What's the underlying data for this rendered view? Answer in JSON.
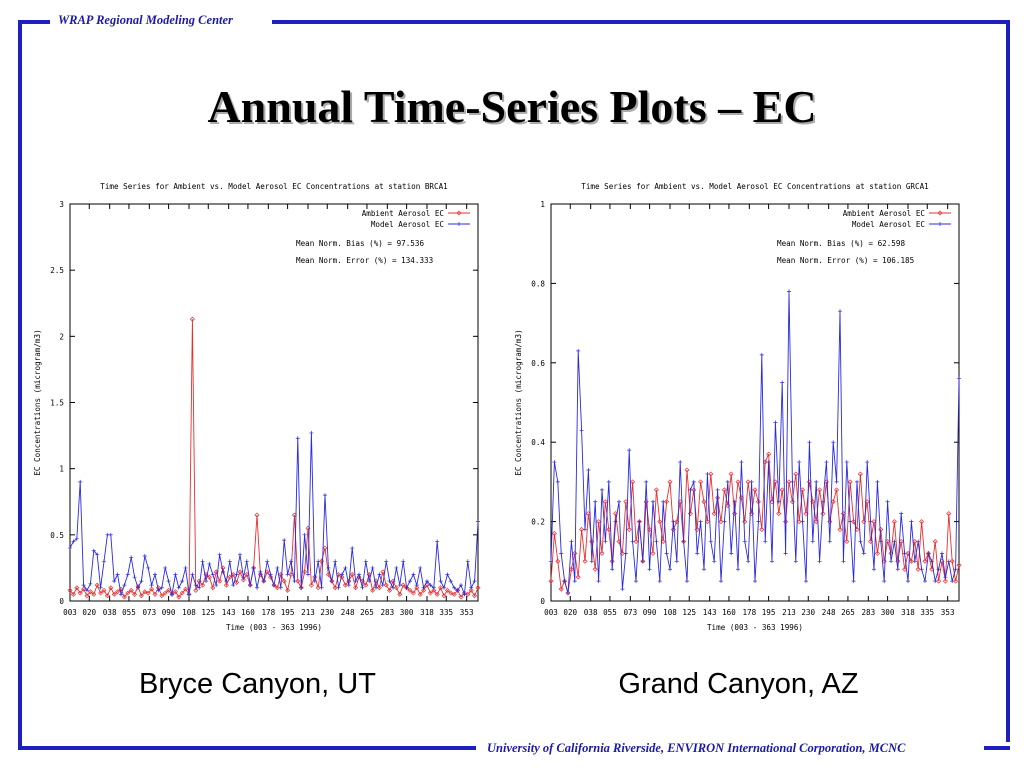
{
  "header": {
    "org": "WRAP Regional Modeling Center"
  },
  "footer": {
    "credits": "University of California Riverside, ENVIRON International Corporation, MCNC"
  },
  "slide": {
    "title": "Annual Time-Series Plots – EC"
  },
  "captions": {
    "left": "Bryce Canyon, UT",
    "right": "Grand Canyon, AZ"
  },
  "colors": {
    "frame": "#1f1fbf",
    "ambient": "#e53030",
    "model": "#2a2ae0"
  },
  "chart_data": [
    {
      "type": "line",
      "title": "Time Series for Ambient vs. Model Aerosol EC Concentrations at station BRCA1",
      "xlabel": "Time    (003 - 363 1996)",
      "ylabel": "EC Concentrations (microgram/m3)",
      "xlim": [
        3,
        363
      ],
      "ylim": [
        0,
        3
      ],
      "x_ticks": [
        "003",
        "020",
        "038",
        "055",
        "073",
        "090",
        "108",
        "125",
        "143",
        "160",
        "178",
        "195",
        "213",
        "230",
        "248",
        "265",
        "283",
        "300",
        "318",
        "335",
        "353"
      ],
      "y_ticks": [
        "0",
        "0.5",
        "1",
        "1.5",
        "2",
        "2.5",
        "3"
      ],
      "legend": [
        "Ambient Aerosol EC",
        "Model Aerosol EC"
      ],
      "stats": [
        "Mean Norm. Bias (%) = 97.536",
        "Mean Norm. Error (%) = 134.333"
      ],
      "series": [
        {
          "name": "Ambient Aerosol EC",
          "color": "#e53030",
          "marker": "diamond",
          "x": [
            3,
            6,
            9,
            12,
            15,
            18,
            21,
            24,
            27,
            30,
            33,
            36,
            39,
            42,
            45,
            48,
            51,
            54,
            57,
            60,
            63,
            66,
            69,
            72,
            75,
            78,
            81,
            84,
            87,
            90,
            93,
            96,
            99,
            102,
            105,
            108,
            111,
            114,
            117,
            120,
            123,
            126,
            129,
            132,
            135,
            138,
            141,
            144,
            147,
            150,
            153,
            156,
            159,
            162,
            165,
            168,
            171,
            174,
            177,
            180,
            183,
            186,
            189,
            192,
            195,
            198,
            201,
            204,
            207,
            210,
            213,
            216,
            219,
            222,
            225,
            228,
            231,
            234,
            237,
            240,
            243,
            246,
            249,
            252,
            255,
            258,
            261,
            264,
            267,
            270,
            273,
            276,
            279,
            282,
            285,
            288,
            291,
            294,
            297,
            300,
            303,
            306,
            309,
            312,
            315,
            318,
            321,
            324,
            327,
            330,
            333,
            336,
            339,
            342,
            345,
            348,
            351,
            354,
            357,
            360,
            363
          ],
          "y": [
            0.08,
            0.05,
            0.1,
            0.06,
            0.09,
            0.04,
            0.07,
            0.05,
            0.12,
            0.06,
            0.08,
            0.04,
            0.1,
            0.05,
            0.07,
            0.09,
            0.03,
            0.06,
            0.08,
            0.05,
            0.11,
            0.04,
            0.07,
            0.06,
            0.09,
            0.05,
            0.1,
            0.04,
            0.06,
            0.08,
            0.05,
            0.07,
            0.03,
            0.06,
            0.09,
            0.05,
            2.13,
            0.08,
            0.15,
            0.12,
            0.2,
            0.18,
            0.1,
            0.22,
            0.15,
            0.25,
            0.12,
            0.18,
            0.2,
            0.14,
            0.22,
            0.16,
            0.2,
            0.12,
            0.25,
            0.65,
            0.2,
            0.15,
            0.22,
            0.18,
            0.12,
            0.1,
            0.2,
            0.15,
            0.08,
            0.2,
            0.65,
            0.15,
            0.1,
            0.22,
            0.55,
            0.12,
            0.18,
            0.1,
            0.3,
            0.4,
            0.2,
            0.15,
            0.1,
            0.2,
            0.18,
            0.12,
            0.15,
            0.2,
            0.1,
            0.18,
            0.15,
            0.12,
            0.2,
            0.08,
            0.15,
            0.1,
            0.22,
            0.12,
            0.08,
            0.15,
            0.1,
            0.05,
            0.12,
            0.1,
            0.08,
            0.06,
            0.1,
            0.05,
            0.08,
            0.12,
            0.06,
            0.08,
            0.05,
            0.1,
            0.04,
            0.08,
            0.06,
            0.05,
            0.08,
            0.03,
            0.06,
            0.05,
            0.08,
            0.04,
            0.1
          ]
        },
        {
          "name": "Model Aerosol EC",
          "color": "#2a2ae0",
          "marker": "plus",
          "x": [
            3,
            6,
            9,
            12,
            15,
            18,
            21,
            24,
            27,
            30,
            33,
            36,
            39,
            42,
            45,
            48,
            51,
            54,
            57,
            60,
            63,
            66,
            69,
            72,
            75,
            78,
            81,
            84,
            87,
            90,
            93,
            96,
            99,
            102,
            105,
            108,
            111,
            114,
            117,
            120,
            123,
            126,
            129,
            132,
            135,
            138,
            141,
            144,
            147,
            150,
            153,
            156,
            159,
            162,
            165,
            168,
            171,
            174,
            177,
            180,
            183,
            186,
            189,
            192,
            195,
            198,
            201,
            204,
            207,
            210,
            213,
            216,
            219,
            222,
            225,
            228,
            231,
            234,
            237,
            240,
            243,
            246,
            249,
            252,
            255,
            258,
            261,
            264,
            267,
            270,
            273,
            276,
            279,
            282,
            285,
            288,
            291,
            294,
            297,
            300,
            303,
            306,
            309,
            312,
            315,
            318,
            321,
            324,
            327,
            330,
            333,
            336,
            339,
            342,
            345,
            348,
            351,
            354,
            357,
            360,
            363
          ],
          "y": [
            0.4,
            0.45,
            0.47,
            0.9,
            0.12,
            0.08,
            0.13,
            0.38,
            0.35,
            0.1,
            0.3,
            0.5,
            0.5,
            0.15,
            0.2,
            0.05,
            0.12,
            0.2,
            0.33,
            0.18,
            0.1,
            0.15,
            0.34,
            0.25,
            0.12,
            0.2,
            0.08,
            0.1,
            0.25,
            0.15,
            0.05,
            0.2,
            0.1,
            0.15,
            0.25,
            0.05,
            0.2,
            0.12,
            0.1,
            0.3,
            0.15,
            0.28,
            0.2,
            0.12,
            0.35,
            0.22,
            0.15,
            0.3,
            0.12,
            0.2,
            0.35,
            0.18,
            0.3,
            0.12,
            0.25,
            0.1,
            0.22,
            0.15,
            0.3,
            0.2,
            0.12,
            0.25,
            0.1,
            0.46,
            0.2,
            0.3,
            0.15,
            1.23,
            0.1,
            0.5,
            0.2,
            1.27,
            0.15,
            0.3,
            0.1,
            0.8,
            0.25,
            0.15,
            0.3,
            0.1,
            0.2,
            0.25,
            0.12,
            0.4,
            0.15,
            0.2,
            0.1,
            0.3,
            0.15,
            0.25,
            0.1,
            0.2,
            0.12,
            0.3,
            0.15,
            0.1,
            0.25,
            0.12,
            0.3,
            0.1,
            0.15,
            0.2,
            0.12,
            0.25,
            0.1,
            0.15,
            0.12,
            0.1,
            0.45,
            0.15,
            0.1,
            0.2,
            0.15,
            0.1,
            0.08,
            0.12,
            0.05,
            0.3,
            0.1,
            0.15,
            0.6
          ]
        }
      ]
    },
    {
      "type": "line",
      "title": "Time Series for Ambient vs. Model Aerosol EC Concentrations at station GRCA1",
      "xlabel": "Time    (003 - 363 1996)",
      "ylabel": "EC Concentrations (microgram/m3)",
      "xlim": [
        3,
        363
      ],
      "ylim": [
        0,
        1
      ],
      "x_ticks": [
        "003",
        "020",
        "038",
        "055",
        "073",
        "090",
        "108",
        "125",
        "143",
        "160",
        "178",
        "195",
        "213",
        "230",
        "248",
        "265",
        "283",
        "300",
        "318",
        "335",
        "353"
      ],
      "y_ticks": [
        "0",
        "0.2",
        "0.4",
        "0.6",
        "0.8",
        "1"
      ],
      "legend": [
        "Ambient Aerosol EC",
        "Model Aerosol EC"
      ],
      "stats": [
        "Mean Norm. Bias (%) = 62.598",
        "Mean Norm. Error (%) = 106.185"
      ],
      "series": [
        {
          "name": "Ambient Aerosol EC",
          "color": "#e53030",
          "marker": "diamond",
          "x": [
            3,
            6,
            9,
            12,
            15,
            18,
            21,
            24,
            27,
            30,
            33,
            36,
            39,
            42,
            45,
            48,
            51,
            54,
            57,
            60,
            63,
            66,
            69,
            72,
            75,
            78,
            81,
            84,
            87,
            90,
            93,
            96,
            99,
            102,
            105,
            108,
            111,
            114,
            117,
            120,
            123,
            126,
            129,
            132,
            135,
            138,
            141,
            144,
            147,
            150,
            153,
            156,
            159,
            162,
            165,
            168,
            171,
            174,
            177,
            180,
            183,
            186,
            189,
            192,
            195,
            198,
            201,
            204,
            207,
            210,
            213,
            216,
            219,
            222,
            225,
            228,
            231,
            234,
            237,
            240,
            243,
            246,
            249,
            252,
            255,
            258,
            261,
            264,
            267,
            270,
            273,
            276,
            279,
            282,
            285,
            288,
            291,
            294,
            297,
            300,
            303,
            306,
            309,
            312,
            315,
            318,
            321,
            324,
            327,
            330,
            333,
            336,
            339,
            342,
            345,
            348,
            351,
            354,
            357,
            360,
            363
          ],
          "y": [
            0.05,
            0.17,
            0.1,
            0.03,
            0.05,
            0.02,
            0.08,
            0.12,
            0.06,
            0.18,
            0.1,
            0.22,
            0.15,
            0.08,
            0.2,
            0.12,
            0.25,
            0.18,
            0.1,
            0.22,
            0.15,
            0.12,
            0.25,
            0.18,
            0.3,
            0.15,
            0.2,
            0.1,
            0.25,
            0.18,
            0.12,
            0.28,
            0.2,
            0.15,
            0.25,
            0.3,
            0.18,
            0.2,
            0.25,
            0.15,
            0.33,
            0.22,
            0.28,
            0.18,
            0.3,
            0.25,
            0.2,
            0.32,
            0.22,
            0.26,
            0.2,
            0.28,
            0.24,
            0.32,
            0.22,
            0.3,
            0.26,
            0.2,
            0.3,
            0.22,
            0.28,
            0.25,
            0.18,
            0.35,
            0.37,
            0.25,
            0.3,
            0.22,
            0.28,
            0.2,
            0.3,
            0.25,
            0.32,
            0.2,
            0.28,
            0.22,
            0.3,
            0.25,
            0.2,
            0.28,
            0.22,
            0.3,
            0.2,
            0.25,
            0.28,
            0.18,
            0.22,
            0.15,
            0.3,
            0.2,
            0.18,
            0.32,
            0.2,
            0.25,
            0.15,
            0.2,
            0.12,
            0.18,
            0.1,
            0.15,
            0.12,
            0.2,
            0.1,
            0.15,
            0.08,
            0.12,
            0.1,
            0.15,
            0.08,
            0.2,
            0.1,
            0.12,
            0.08,
            0.15,
            0.05,
            0.1,
            0.05,
            0.22,
            0.1,
            0.05,
            0.09
          ]
        },
        {
          "name": "Model Aerosol EC",
          "color": "#2a2ae0",
          "marker": "plus",
          "x": [
            3,
            6,
            9,
            12,
            15,
            18,
            21,
            24,
            27,
            30,
            33,
            36,
            39,
            42,
            45,
            48,
            51,
            54,
            57,
            60,
            63,
            66,
            69,
            72,
            75,
            78,
            81,
            84,
            87,
            90,
            93,
            96,
            99,
            102,
            105,
            108,
            111,
            114,
            117,
            120,
            123,
            126,
            129,
            132,
            135,
            138,
            141,
            144,
            147,
            150,
            153,
            156,
            159,
            162,
            165,
            168,
            171,
            174,
            177,
            180,
            183,
            186,
            189,
            192,
            195,
            198,
            201,
            204,
            207,
            210,
            213,
            216,
            219,
            222,
            225,
            228,
            231,
            234,
            237,
            240,
            243,
            246,
            249,
            252,
            255,
            258,
            261,
            264,
            267,
            270,
            273,
            276,
            279,
            282,
            285,
            288,
            291,
            294,
            297,
            300,
            303,
            306,
            309,
            312,
            315,
            318,
            321,
            324,
            327,
            330,
            333,
            336,
            339,
            342,
            345,
            348,
            351,
            354,
            357,
            360,
            363
          ],
          "y": [
            0.1,
            0.35,
            0.3,
            0.12,
            0.05,
            0.02,
            0.15,
            0.05,
            0.63,
            0.43,
            0.18,
            0.33,
            0.1,
            0.25,
            0.05,
            0.28,
            0.15,
            0.3,
            0.08,
            0.2,
            0.25,
            0.03,
            0.12,
            0.38,
            0.15,
            0.05,
            0.2,
            0.1,
            0.3,
            0.08,
            0.25,
            0.15,
            0.05,
            0.25,
            0.12,
            0.08,
            0.2,
            0.1,
            0.35,
            0.15,
            0.05,
            0.28,
            0.3,
            0.12,
            0.2,
            0.08,
            0.32,
            0.15,
            0.1,
            0.28,
            0.05,
            0.2,
            0.3,
            0.12,
            0.25,
            0.08,
            0.35,
            0.15,
            0.1,
            0.3,
            0.05,
            0.2,
            0.62,
            0.15,
            0.35,
            0.1,
            0.45,
            0.25,
            0.55,
            0.12,
            0.78,
            0.3,
            0.1,
            0.35,
            0.2,
            0.05,
            0.4,
            0.15,
            0.3,
            0.1,
            0.25,
            0.35,
            0.15,
            0.4,
            0.3,
            0.73,
            0.1,
            0.35,
            0.2,
            0.05,
            0.3,
            0.15,
            0.12,
            0.35,
            0.2,
            0.08,
            0.3,
            0.15,
            0.05,
            0.25,
            0.1,
            0.15,
            0.08,
            0.22,
            0.12,
            0.05,
            0.2,
            0.1,
            0.15,
            0.08,
            0.05,
            0.12,
            0.1,
            0.05,
            0.08,
            0.12,
            0.06,
            0.1,
            0.05,
            0.08,
            0.56
          ]
        }
      ]
    }
  ]
}
